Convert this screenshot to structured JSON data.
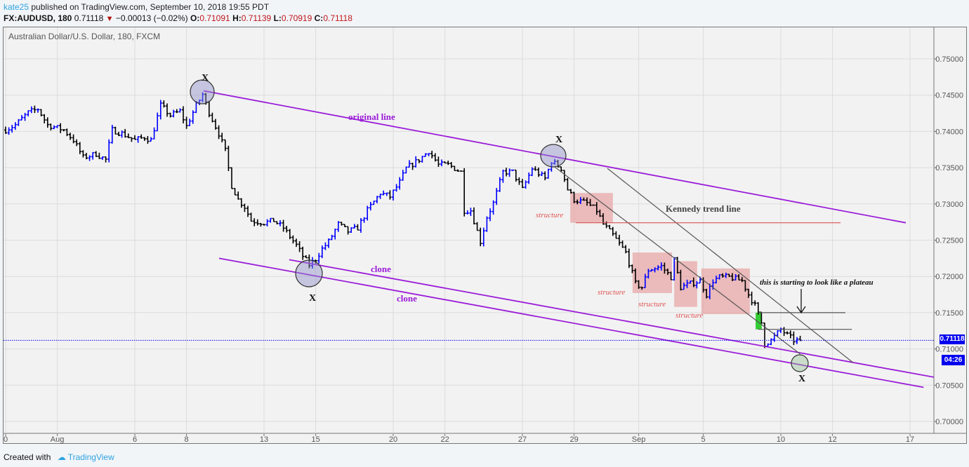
{
  "header": {
    "user": "kate25",
    "published": "published on TradingView.com, September 10, 2018 19:55 PDT",
    "symbol": "FX:AUDUSD, 180",
    "last": "0.71118",
    "change": "−0.00013 (−0.02%)",
    "o_label": "O:",
    "o": "0.71091",
    "h_label": "H:",
    "h": "0.71139",
    "l_label": "L:",
    "l": "0.70919",
    "c_label": "C:",
    "c": "0.71118"
  },
  "chart_title": "Australian Dollar/U.S. Dollar, 180, FXCM",
  "footer": {
    "created_with": "Created with",
    "brand": "TradingView"
  },
  "colors": {
    "up": "#0000ff",
    "down": "#000000",
    "channel": "#9b1cd9",
    "trend": "#555555",
    "structure_box": "#e8a3a3",
    "highlight_box": "#33cc33",
    "price_tag": "#0000ee"
  },
  "annotations": {
    "original_line": "original line",
    "clone_1": "clone",
    "clone_2": "clone",
    "kennedy": "Kennedy trend line",
    "structure": [
      "structure",
      "structure",
      "structure",
      "structure"
    ],
    "plateau": "this is starting to look like a plateau",
    "x_marks": [
      "X",
      "X",
      "X",
      "X"
    ]
  },
  "price_tag": "0.71118",
  "countdown": "04:26",
  "chart_data": {
    "type": "ohlc",
    "bar_interval": "180 min",
    "ylim": [
      0.6995,
      0.7545
    ],
    "y_ticks": [
      "0.75000",
      "0.74500",
      "0.74000",
      "0.73500",
      "0.73000",
      "0.72500",
      "0.72000",
      "0.71500",
      "0.71000",
      "0.70500",
      "0.70000"
    ],
    "x_ticks": [
      {
        "bar": 0,
        "label": "0"
      },
      {
        "bar": 16,
        "label": "Aug"
      },
      {
        "bar": 40,
        "label": "6"
      },
      {
        "bar": 56,
        "label": "8"
      },
      {
        "bar": 80,
        "label": "13"
      },
      {
        "bar": 96,
        "label": "15"
      },
      {
        "bar": 120,
        "label": "20"
      },
      {
        "bar": 136,
        "label": "22"
      },
      {
        "bar": 160,
        "label": "27"
      },
      {
        "bar": 176,
        "label": "29"
      },
      {
        "bar": 196,
        "label": "Sep"
      },
      {
        "bar": 216,
        "label": "5"
      },
      {
        "bar": 240,
        "label": "10"
      },
      {
        "bar": 256,
        "label": "12"
      },
      {
        "bar": 280,
        "label": "17"
      }
    ],
    "grid": true,
    "last_price": 0.71118,
    "close_path": [
      [
        0,
        0.7402
      ],
      [
        3,
        0.7409
      ],
      [
        7,
        0.7426
      ],
      [
        10,
        0.7431
      ],
      [
        13,
        0.7409
      ],
      [
        18,
        0.7402
      ],
      [
        21,
        0.7388
      ],
      [
        24,
        0.7364
      ],
      [
        28,
        0.7369
      ],
      [
        31,
        0.7361
      ],
      [
        33,
        0.7402
      ],
      [
        36,
        0.7397
      ],
      [
        40,
        0.7388
      ],
      [
        43,
        0.7392
      ],
      [
        45,
        0.7388
      ],
      [
        48,
        0.7436
      ],
      [
        51,
        0.7422
      ],
      [
        54,
        0.7428
      ],
      [
        56,
        0.7407
      ],
      [
        59,
        0.7436
      ],
      [
        61,
        0.7451
      ],
      [
        63,
        0.7426
      ],
      [
        66,
        0.7397
      ],
      [
        68,
        0.7373
      ],
      [
        70,
        0.7325
      ],
      [
        72,
        0.7306
      ],
      [
        74,
        0.7296
      ],
      [
        76,
        0.7277
      ],
      [
        80,
        0.7274
      ],
      [
        83,
        0.7277
      ],
      [
        86,
        0.7267
      ],
      [
        90,
        0.7243
      ],
      [
        92,
        0.7228
      ],
      [
        94,
        0.7216
      ],
      [
        96,
        0.7224
      ],
      [
        98,
        0.7238
      ],
      [
        100,
        0.7248
      ],
      [
        103,
        0.7272
      ],
      [
        106,
        0.7262
      ],
      [
        109,
        0.7267
      ],
      [
        112,
        0.7291
      ],
      [
        116,
        0.7315
      ],
      [
        119,
        0.731
      ],
      [
        122,
        0.733
      ],
      [
        124,
        0.7349
      ],
      [
        128,
        0.7361
      ],
      [
        131,
        0.7373
      ],
      [
        134,
        0.7354
      ],
      [
        137,
        0.7354
      ],
      [
        141,
        0.7344
      ],
      [
        142,
        0.7291
      ],
      [
        144,
        0.7291
      ],
      [
        147,
        0.7248
      ],
      [
        149,
        0.7282
      ],
      [
        151,
        0.7301
      ],
      [
        154,
        0.7344
      ],
      [
        157,
        0.7344
      ],
      [
        160,
        0.732
      ],
      [
        163,
        0.7349
      ],
      [
        167,
        0.7335
      ],
      [
        169,
        0.7359
      ],
      [
        172,
        0.7349
      ],
      [
        174,
        0.732
      ],
      [
        176,
        0.7306
      ],
      [
        180,
        0.7301
      ],
      [
        183,
        0.7291
      ],
      [
        185,
        0.7272
      ],
      [
        188,
        0.7257
      ],
      [
        192,
        0.7233
      ],
      [
        195,
        0.719
      ],
      [
        197,
        0.7185
      ],
      [
        199,
        0.7209
      ],
      [
        203,
        0.7214
      ],
      [
        206,
        0.7199
      ],
      [
        207,
        0.7223
      ],
      [
        209,
        0.7185
      ],
      [
        212,
        0.719
      ],
      [
        215,
        0.7194
      ],
      [
        217,
        0.7175
      ],
      [
        219,
        0.7194
      ],
      [
        221,
        0.7199
      ],
      [
        224,
        0.7199
      ],
      [
        228,
        0.7194
      ],
      [
        230,
        0.7175
      ],
      [
        232,
        0.716
      ],
      [
        234,
        0.7136
      ],
      [
        235,
        0.7107
      ],
      [
        237,
        0.7112
      ],
      [
        240,
        0.7127
      ],
      [
        242,
        0.7119
      ],
      [
        244,
        0.7112
      ],
      [
        246,
        0.71118
      ]
    ],
    "drawings": {
      "channel_lines": [
        {
          "name": "original-line",
          "from": [
            61.3,
            0.7456
          ],
          "to": [
            278.7,
            0.7274
          ]
        },
        {
          "name": "clone-line-1",
          "from": [
            87.8,
            0.7223
          ],
          "to": [
            287.4,
            0.7061
          ]
        },
        {
          "name": "clone-line-2",
          "from": [
            66.1,
            0.7225
          ],
          "to": [
            284.2,
            0.7047
          ]
        }
      ],
      "trend_lines": [
        {
          "name": "kennedy-trend-line-inner",
          "from": [
            170,
            0.7351
          ],
          "to": [
            246,
            0.7093
          ]
        },
        {
          "name": "kennedy-trend-line",
          "from": [
            186.3,
            0.7349
          ],
          "to": [
            262.4,
            0.7081
          ]
        }
      ],
      "horizontal_lines": [
        {
          "name": "structure-level-line",
          "price": 0.7274,
          "from": 176.5,
          "to": 258.5,
          "color": "#d9534f"
        },
        {
          "name": "plateau-level-upper",
          "price": 0.715,
          "from": 233,
          "to": 260,
          "color": "#555555"
        },
        {
          "name": "plateau-level-lower",
          "price": 0.7127,
          "from": 233,
          "to": 262,
          "color": "#555555"
        }
      ],
      "structure_boxes": [
        {
          "from": 174.8,
          "to": 188,
          "top": 0.7315,
          "bottom": 0.7274
        },
        {
          "from": 194.1,
          "to": 206.3,
          "top": 0.7233,
          "bottom": 0.7177
        },
        {
          "from": 207,
          "to": 214.1,
          "top": 0.7221,
          "bottom": 0.7158
        },
        {
          "from": 215.4,
          "to": 230.4,
          "top": 0.7211,
          "bottom": 0.7148
        }
      ],
      "highlight_box": {
        "from": 232.2,
        "to": 234.1,
        "top": 0.715,
        "bottom": 0.7127
      }
    }
  }
}
